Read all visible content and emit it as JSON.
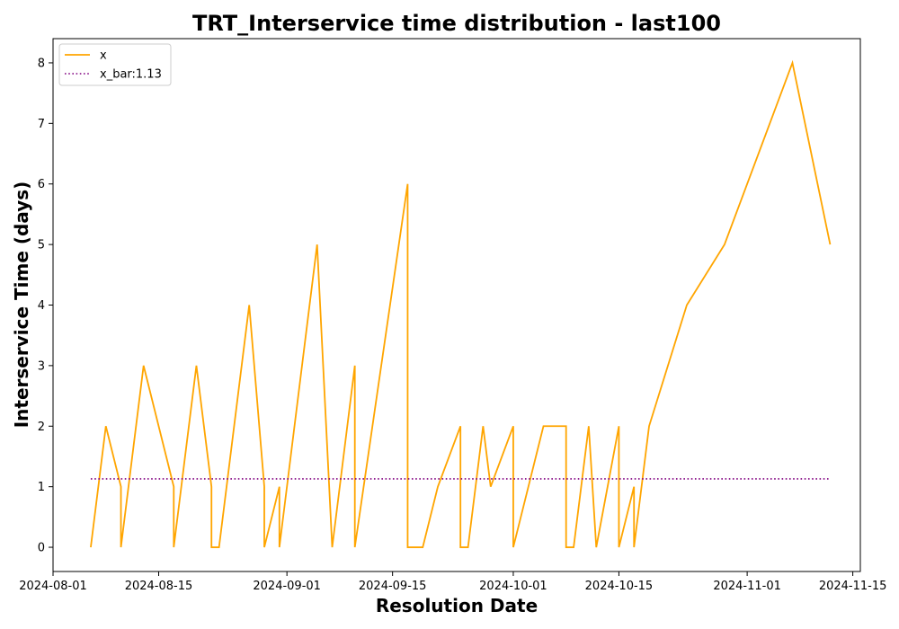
{
  "chart_data": {
    "type": "line",
    "title": "TRT_Interservice time distribution - last100",
    "xlabel": "Resolution Date",
    "ylabel": "Interservice Time (days)",
    "xlim": [
      "2024-08-01",
      "2024-11-16"
    ],
    "ylim": [
      -0.4,
      8.4
    ],
    "x_ticks": [
      "2024-08-01",
      "2024-08-15",
      "2024-09-01",
      "2024-09-15",
      "2024-10-01",
      "2024-10-15",
      "2024-11-01",
      "2024-11-15"
    ],
    "y_ticks": [
      0,
      1,
      2,
      3,
      4,
      5,
      6,
      7,
      8
    ],
    "grid": false,
    "legend_position": "top-left",
    "series": [
      {
        "name": "x",
        "color": "#ffa500",
        "style": "solid",
        "x": [
          "2024-08-06",
          "2024-08-08",
          "2024-08-10",
          "2024-08-10",
          "2024-08-13",
          "2024-08-17",
          "2024-08-17",
          "2024-08-20",
          "2024-08-22",
          "2024-08-22",
          "2024-08-23",
          "2024-08-27",
          "2024-08-29",
          "2024-08-29",
          "2024-08-31",
          "2024-08-31",
          "2024-09-05",
          "2024-09-07",
          "2024-09-10",
          "2024-09-10",
          "2024-09-17",
          "2024-09-17",
          "2024-09-19",
          "2024-09-21",
          "2024-09-24",
          "2024-09-24",
          "2024-09-25",
          "2024-09-27",
          "2024-09-28",
          "2024-10-01",
          "2024-10-01",
          "2024-10-03",
          "2024-10-05",
          "2024-10-08",
          "2024-10-08",
          "2024-10-09",
          "2024-10-11",
          "2024-10-12",
          "2024-10-15",
          "2024-10-15",
          "2024-10-17",
          "2024-10-17",
          "2024-10-19",
          "2024-10-24",
          "2024-10-29",
          "2024-11-07",
          "2024-11-12"
        ],
        "y": [
          0,
          2,
          1,
          0,
          3,
          1,
          0,
          3,
          1,
          0,
          0,
          4,
          1,
          0,
          1,
          0,
          5,
          0,
          3,
          0,
          6,
          0,
          0,
          1,
          2,
          0,
          0,
          2,
          1,
          2,
          0,
          1,
          2,
          2,
          0,
          0,
          2,
          0,
          2,
          0,
          1,
          0,
          2,
          4,
          5,
          8,
          5
        ]
      },
      {
        "name": "x_bar:1.13",
        "color": "#800080",
        "style": "dotted",
        "x": [
          "2024-08-06",
          "2024-11-12"
        ],
        "y": [
          1.13,
          1.13
        ]
      }
    ]
  }
}
